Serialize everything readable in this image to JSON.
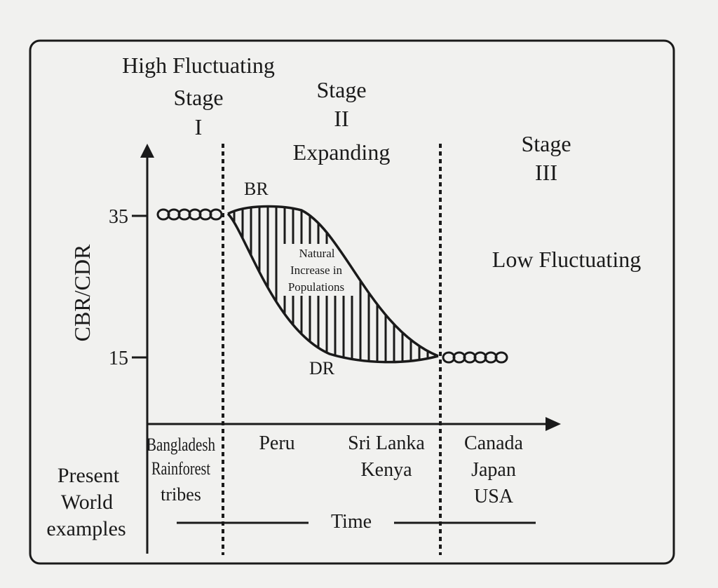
{
  "stages": {
    "stage1": {
      "line1": "High Fluctuating",
      "line2": "Stage",
      "line3": "I"
    },
    "stage2": {
      "line1": "Stage",
      "line2": "II",
      "line3": "Expanding"
    },
    "stage3": {
      "line1": "Stage",
      "line2": "III",
      "line3": "Low Fluctuating"
    }
  },
  "axis": {
    "y_label": "CBR/CDR",
    "y_ticks": [
      "35",
      "15"
    ],
    "x_label": "Time"
  },
  "curves": {
    "birth_rate_label": "BR",
    "death_rate_label": "DR",
    "gap_label": [
      "Natural",
      "Increase in",
      "Populations"
    ]
  },
  "examples": {
    "row_label": [
      "Present",
      "World",
      "examples"
    ],
    "stage1": [
      "Bangladesh",
      "Rainforest",
      "tribes"
    ],
    "stage2a": [
      "Peru"
    ],
    "stage2b": [
      "Sri Lanka",
      "Kenya"
    ],
    "stage3": [
      "Canada",
      "Japan",
      "USA"
    ]
  },
  "colors": {
    "ink": "#1a1a1a",
    "paper": "#f1f1ef"
  }
}
